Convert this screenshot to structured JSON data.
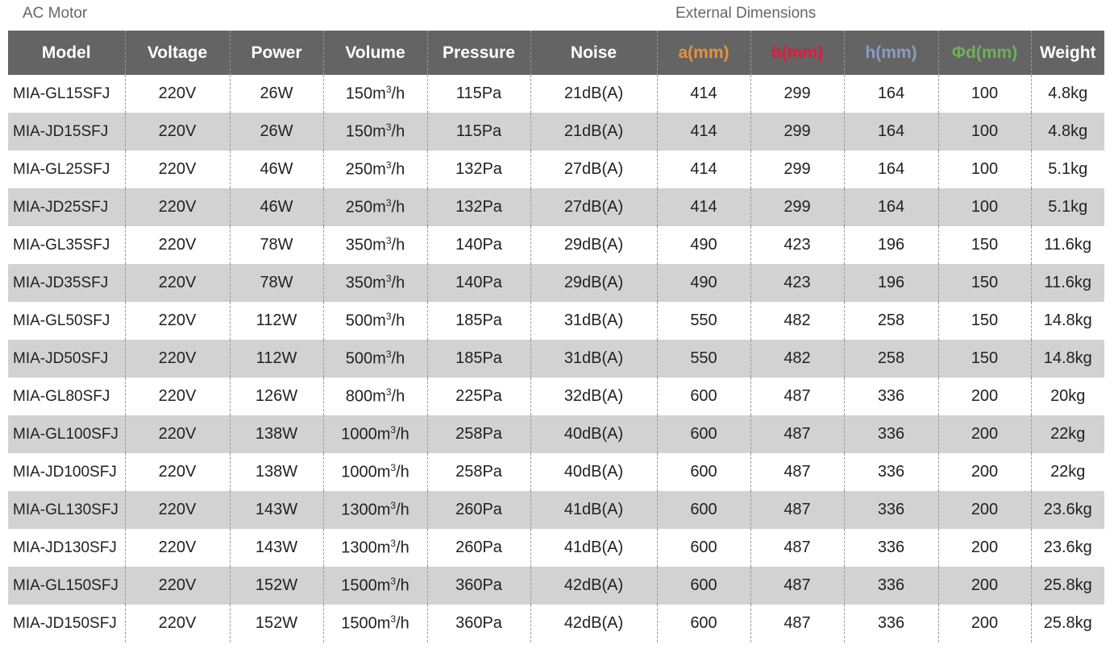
{
  "captions": {
    "left": "AC Motor",
    "right": "External Dimensions"
  },
  "headers": [
    {
      "label": "Model",
      "color": "#ffffff"
    },
    {
      "label": "Voltage",
      "color": "#ffffff"
    },
    {
      "label": "Power",
      "color": "#ffffff"
    },
    {
      "label": "Volume",
      "color": "#ffffff"
    },
    {
      "label": "Pressure",
      "color": "#ffffff"
    },
    {
      "label": "Noise",
      "color": "#ffffff"
    },
    {
      "label": "a(mm)",
      "color": "#e8923a"
    },
    {
      "label": "b(mm)",
      "color": "#e5173f"
    },
    {
      "label": "h(mm)",
      "color": "#8a9cc4"
    },
    {
      "label": "Φd(mm)",
      "color": "#6db05a"
    },
    {
      "label": "Weight",
      "color": "#ffffff"
    }
  ],
  "rows": [
    [
      "MIA-GL15SFJ",
      "220V",
      "26W",
      "150",
      "115Pa",
      "21dB(A)",
      "414",
      "299",
      "164",
      "100",
      "4.8kg"
    ],
    [
      "MIA-JD15SFJ",
      "220V",
      "26W",
      "150",
      "115Pa",
      "21dB(A)",
      "414",
      "299",
      "164",
      "100",
      "4.8kg"
    ],
    [
      "MIA-GL25SFJ",
      "220V",
      "46W",
      "250",
      "132Pa",
      "27dB(A)",
      "414",
      "299",
      "164",
      "100",
      "5.1kg"
    ],
    [
      "MIA-JD25SFJ",
      "220V",
      "46W",
      "250",
      "132Pa",
      "27dB(A)",
      "414",
      "299",
      "164",
      "100",
      "5.1kg"
    ],
    [
      "MIA-GL35SFJ",
      "220V",
      "78W",
      "350",
      "140Pa",
      "29dB(A)",
      "490",
      "423",
      "196",
      "150",
      "11.6kg"
    ],
    [
      "MIA-JD35SFJ",
      "220V",
      "78W",
      "350",
      "140Pa",
      "29dB(A)",
      "490",
      "423",
      "196",
      "150",
      "11.6kg"
    ],
    [
      "MIA-GL50SFJ",
      "220V",
      "112W",
      "500",
      "185Pa",
      "31dB(A)",
      "550",
      "482",
      "258",
      "150",
      "14.8kg"
    ],
    [
      "MIA-JD50SFJ",
      "220V",
      "112W",
      "500",
      "185Pa",
      "31dB(A)",
      "550",
      "482",
      "258",
      "150",
      "14.8kg"
    ],
    [
      "MIA-GL80SFJ",
      "220V",
      "126W",
      "800",
      "225Pa",
      "32dB(A)",
      "600",
      "487",
      "336",
      "200",
      "20kg"
    ],
    [
      "MIA-GL100SFJ",
      "220V",
      "138W",
      "1000",
      "258Pa",
      "40dB(A)",
      "600",
      "487",
      "336",
      "200",
      "22kg"
    ],
    [
      "MIA-JD100SFJ",
      "220V",
      "138W",
      "1000",
      "258Pa",
      "40dB(A)",
      "600",
      "487",
      "336",
      "200",
      "22kg"
    ],
    [
      "MIA-GL130SFJ",
      "220V",
      "143W",
      "1300",
      "260Pa",
      "41dB(A)",
      "600",
      "487",
      "336",
      "200",
      "23.6kg"
    ],
    [
      "MIA-JD130SFJ",
      "220V",
      "143W",
      "1300",
      "260Pa",
      "41dB(A)",
      "600",
      "487",
      "336",
      "200",
      "23.6kg"
    ],
    [
      "MIA-GL150SFJ",
      "220V",
      "152W",
      "1500",
      "360Pa",
      "42dB(A)",
      "600",
      "487",
      "336",
      "200",
      "25.8kg"
    ],
    [
      "MIA-JD150SFJ",
      "220V",
      "152W",
      "1500",
      "360Pa",
      "42dB(A)",
      "600",
      "487",
      "336",
      "200",
      "25.8kg"
    ]
  ],
  "volume_unit": {
    "base": "m",
    "exp": "3",
    "suffix": "/h"
  }
}
